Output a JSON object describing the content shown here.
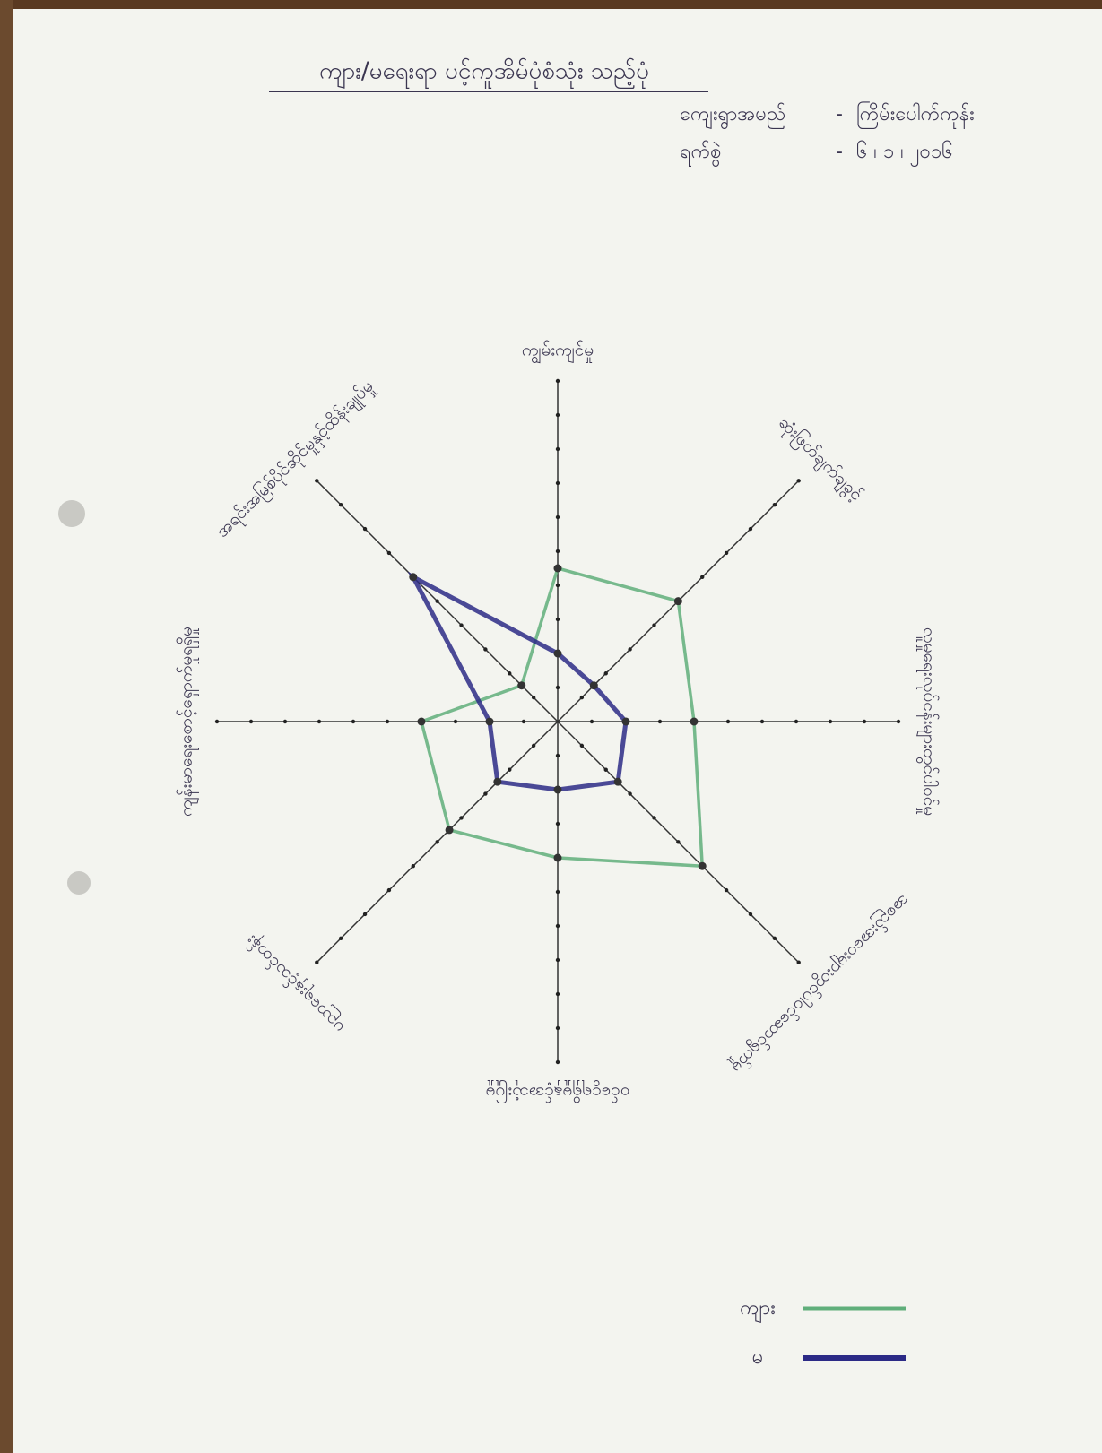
{
  "chart_data": {
    "type": "radar",
    "title": "ကျား/မရေးရာ ပင့်ကူအိမ်ပုံစံသုံး သည့်ပုံ",
    "village_label": "ကျေးရွာအမည်",
    "village": "ကြိမ်းပေါက်ကုန်း",
    "date_label": "ရက်စွဲ",
    "date": "၆ ၊ ၁ ၊ ၂၀၁၆",
    "categories": [
      "ကျွမ်းကျင်မှု",
      "ဆုံးဖြတ်ချက်ချခွင့်",
      "လူမှုရေးလုပ်ငန်းများတွင်ပါဝင်မှု",
      "အစည်းအဝေးများတွင်ပါဝင်ဆောင်ရွက်မှု",
      "ဝင်ငွေရရှိမှုနှင့်အသုံးပြုမှု",
      "ပညာရေးနှင့်သင်တန်း",
      "ကျန်းမာရေးစောင့်ရှောက်မှုရရှိမှု",
      "အရင်းအမြစ်ပိုင်ဆိုင်မှုနှင့်ထိန်းချုပ်မှု"
    ],
    "series": [
      {
        "name": "ကျား",
        "color": "#5fae7a",
        "values": [
          9,
          10,
          8,
          12,
          8,
          9,
          8,
          3
        ]
      },
      {
        "name": "မ",
        "color": "#2b2a86",
        "values": [
          4,
          3,
          4,
          5,
          4,
          5,
          4,
          12
        ]
      }
    ],
    "rlim": [
      0,
      20
    ],
    "rticks": [
      2,
      4,
      6,
      8,
      10,
      12,
      14,
      16,
      18,
      20
    ]
  }
}
